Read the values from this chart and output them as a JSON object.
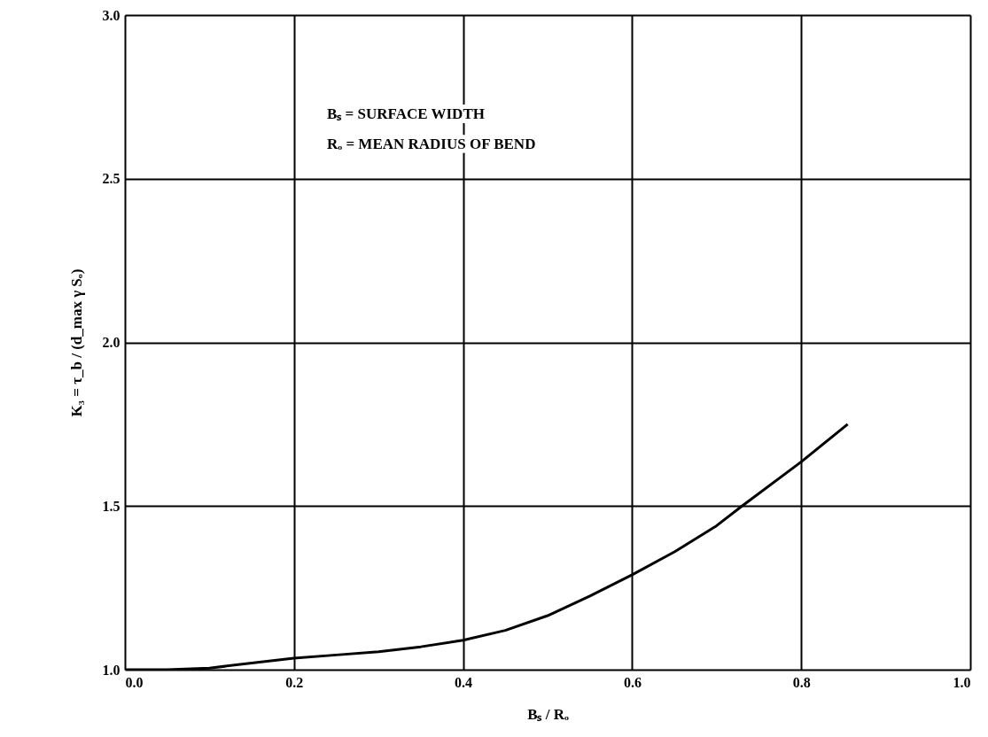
{
  "chart_data": {
    "type": "line",
    "xlabel": "Bₛ / Rₒ",
    "ylabel": "K₃ = τ_b / (d_max γ Sₒ)",
    "annotations": [
      "Bₛ = SURFACE WIDTH",
      "Rₒ = MEAN RADIUS OF BEND"
    ],
    "x": [
      0.0,
      0.05,
      0.1,
      0.15,
      0.2,
      0.25,
      0.3,
      0.35,
      0.4,
      0.45,
      0.5,
      0.55,
      0.6,
      0.65,
      0.7,
      0.73,
      0.8,
      0.855
    ],
    "series": [
      {
        "color": "#000000",
        "values": [
          1.0,
          1.0,
          1.005,
          1.02,
          1.035,
          1.045,
          1.055,
          1.07,
          1.09,
          1.12,
          1.165,
          1.225,
          1.29,
          1.36,
          1.44,
          1.5,
          1.635,
          1.75
        ]
      }
    ],
    "xlim": [
      0.0,
      1.0
    ],
    "ylim": [
      1.0,
      3.0
    ],
    "xticks": [
      {
        "value": 0,
        "label": "0.0"
      },
      0.2,
      0.4,
      0.6,
      0.8,
      {
        "value": 1,
        "label": "1.0"
      }
    ],
    "yticks": [
      {
        "value": 1,
        "label": "1.0"
      },
      1.5,
      {
        "value": 2,
        "label": "2.0"
      },
      2.5,
      {
        "value": 3,
        "label": "3.0"
      }
    ],
    "grid": true,
    "marker": "none",
    "line_style": "solid"
  }
}
